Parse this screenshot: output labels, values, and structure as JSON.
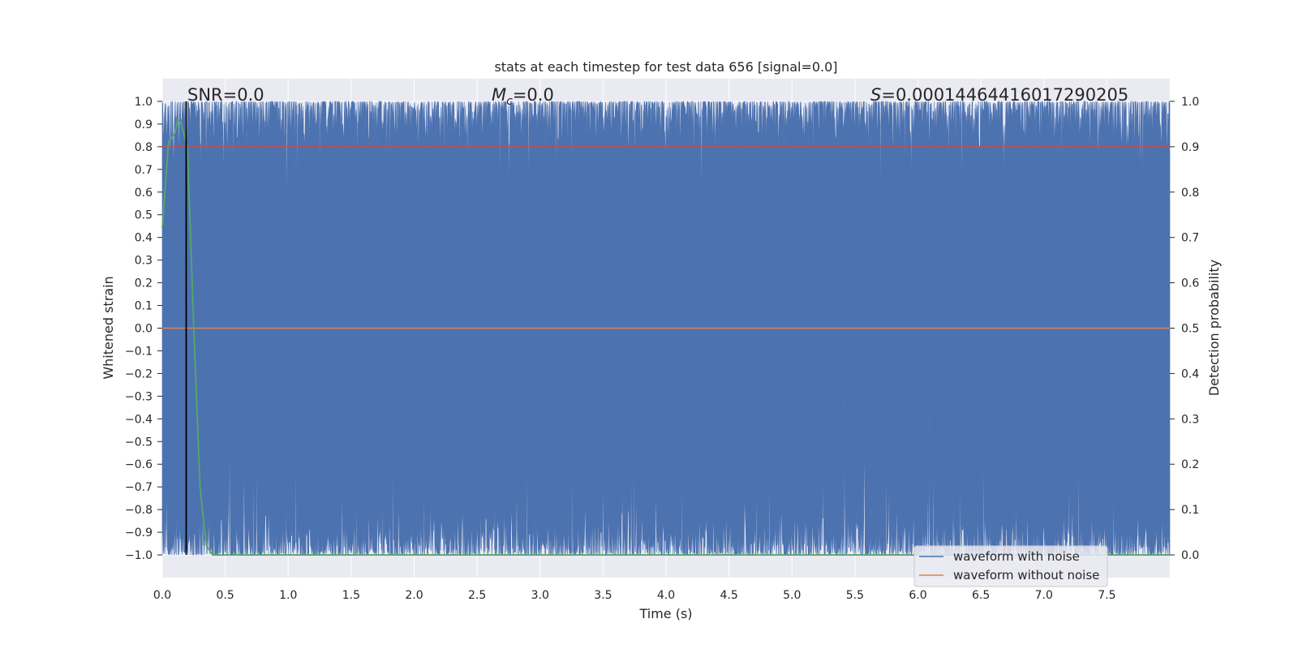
{
  "chart_data": {
    "type": "line",
    "title": "stats at each timestep for test data 656 [signal=0.0]",
    "xlabel": "Time (s)",
    "ylabel": "Whitened strain",
    "y2label": "Detection probability",
    "xlim": [
      0.0,
      8.0
    ],
    "ylim": [
      -1.1,
      1.1
    ],
    "y2lim": [
      -0.05,
      1.05
    ],
    "xticks": [
      "0.0",
      "0.5",
      "1.0",
      "1.5",
      "2.0",
      "2.5",
      "3.0",
      "3.5",
      "4.0",
      "4.5",
      "5.0",
      "5.5",
      "6.0",
      "6.5",
      "7.0",
      "7.5"
    ],
    "yticks": [
      "1.0",
      "0.9",
      "0.8",
      "0.7",
      "0.6",
      "0.5",
      "0.4",
      "0.3",
      "0.2",
      "0.1",
      "0.0",
      "−0.1",
      "−0.2",
      "−0.3",
      "−0.4",
      "−0.5",
      "−0.6",
      "−0.7",
      "−0.8",
      "−0.9",
      "−1.0"
    ],
    "y2ticks": [
      "1.0",
      "0.9",
      "0.8",
      "0.7",
      "0.6",
      "0.5",
      "0.4",
      "0.3",
      "0.2",
      "0.1",
      "0.0"
    ],
    "grid": true,
    "legend_placement": "lower-right",
    "annotations": {
      "snr": "SNR=0.0",
      "mc_symbol": "M",
      "mc_sub": "c",
      "mc_value": "=0.0",
      "s_symbol": "S",
      "s_value": "=0.00014464416017290205"
    },
    "series": [
      {
        "name": "waveform with noise",
        "color": "#4c72b0",
        "description_range": [
          -1.0,
          1.0
        ],
        "duration": 8.0
      },
      {
        "name": "waveform without noise",
        "color": "#dd8452",
        "value": 0.0
      }
    ],
    "detection_probability": {
      "color": "#55a868",
      "x": [
        0.0,
        0.05,
        0.1,
        0.125,
        0.15,
        0.2,
        0.25,
        0.3,
        0.35,
        0.4,
        1.0,
        8.0
      ],
      "y": [
        0.72,
        0.91,
        0.93,
        0.96,
        0.95,
        0.9,
        0.5,
        0.15,
        0.02,
        0.0,
        0.0,
        0.0
      ]
    },
    "threshold": {
      "value": 0.9,
      "color": "#c44e52"
    },
    "marker_line": {
      "x": 0.19,
      "color": "#000000"
    }
  }
}
